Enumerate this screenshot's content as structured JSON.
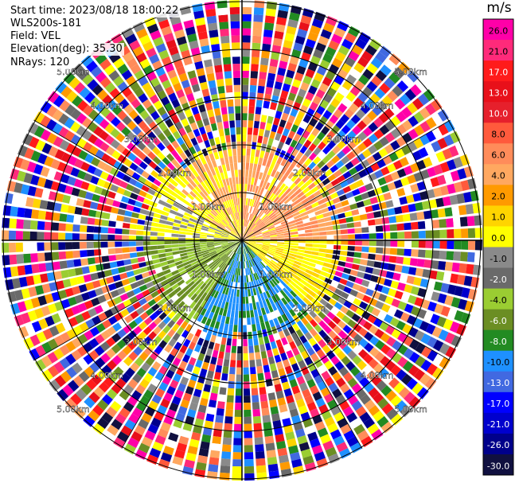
{
  "header": {
    "start_time": "Start time: 2023/08/18 18:00:22",
    "site": "WLS200s-181",
    "field": "Field: VEL",
    "elevation": "Elevation(deg): 35.30",
    "nrays": "NRays: 120"
  },
  "chart_data": {
    "type": "heatmap",
    "subtype": "ppi-polar",
    "unit_label": "m/s",
    "nrays": 120,
    "ring_labels": [
      "1.00km",
      "2.00km",
      "3.00km",
      "4.00km",
      "5.00km"
    ],
    "colorbar": {
      "labels": [
        "26.0",
        "21.0",
        "17.0",
        "13.0",
        "10.0",
        "8.0",
        "6.0",
        "4.0",
        "2.0",
        "1.0",
        "0.0",
        "-1.0",
        "-2.0",
        "-4.0",
        "-6.0",
        "-8.0",
        "-10.0",
        "-13.0",
        "-17.0",
        "-21.0",
        "-26.0",
        "-30.0"
      ],
      "colors": [
        "#ff00a8",
        "#ff2a7a",
        "#ff1b1b",
        "#e8101a",
        "#e6202c",
        "#ff5a3c",
        "#ff8c5a",
        "#ffa860",
        "#ff9a00",
        "#ffd400",
        "#ffff00",
        "#8a8a8a",
        "#6a6a6a",
        "#9acd32",
        "#6b8e23",
        "#228b22",
        "#1e90ff",
        "#4169e1",
        "#0000ff",
        "#0000cd",
        "#00008b",
        "#101040"
      ]
    },
    "velocity_pattern": [
      {
        "sector": "north-east",
        "dominant": "positive 6-8 m/s near, mixed noise far"
      },
      {
        "sector": "east",
        "dominant": "positive 2-4 m/s"
      },
      {
        "sector": "south-west",
        "dominant": "negative -2 to -6 m/s"
      },
      {
        "sector": "south",
        "dominant": "negative -8 to -10 m/s"
      }
    ]
  }
}
